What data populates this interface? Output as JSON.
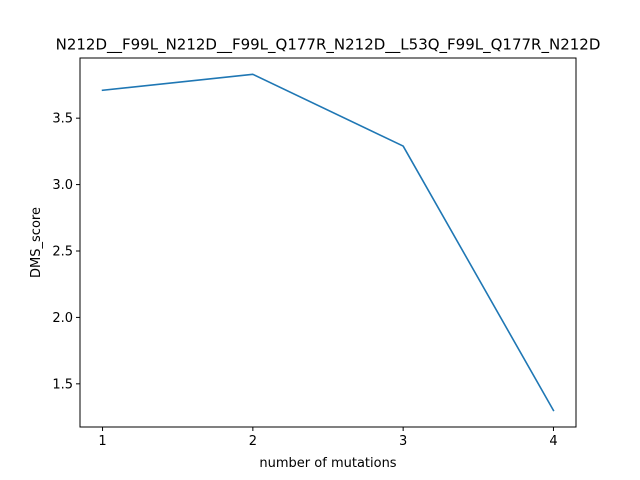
{
  "chart_data": {
    "type": "line",
    "title": "N212D__F99L_N212D__F99L_Q177R_N212D__L53Q_F99L_Q177R_N212D",
    "xlabel": "number of mutations",
    "ylabel": "DMS_score",
    "x": [
      1,
      2,
      3,
      4
    ],
    "xticks": [
      "1",
      "2",
      "3",
      "4"
    ],
    "yticks": [
      "1.5",
      "2.0",
      "2.5",
      "3.0",
      "3.5"
    ],
    "ytick_values": [
      1.5,
      2.0,
      2.5,
      3.0,
      3.5
    ],
    "xlim": [
      0.85,
      4.15
    ],
    "ylim": [
      1.175,
      3.953
    ],
    "grid": false,
    "series": [
      {
        "values": [
          3.71,
          3.83,
          3.29,
          1.3
        ],
        "color": "#1f77b4"
      }
    ]
  }
}
